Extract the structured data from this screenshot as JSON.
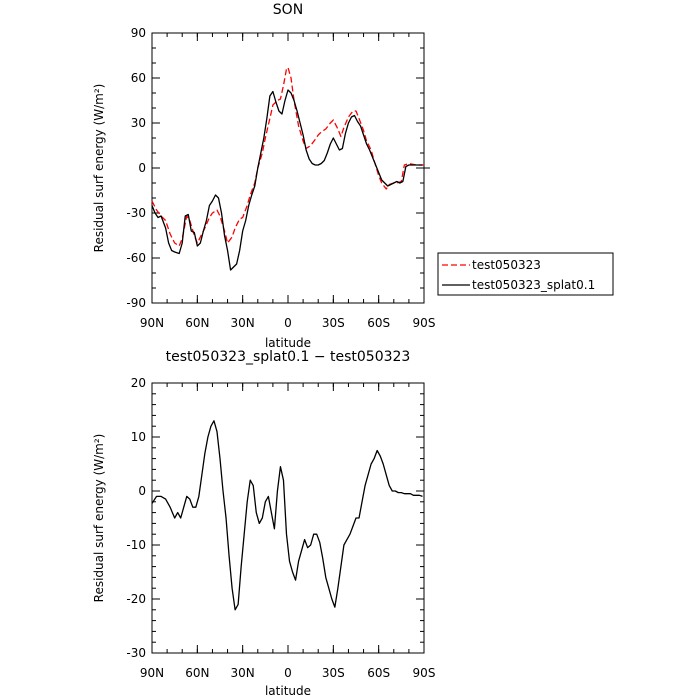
{
  "chart_data": [
    {
      "type": "line",
      "title": "SON",
      "xlabel": "latitude",
      "ylabel": "Residual surf energy (W/m²)",
      "xticks": [
        "90N",
        "60N",
        "30N",
        "0",
        "30S",
        "60S",
        "90S"
      ],
      "xtick_values": [
        90,
        60,
        30,
        0,
        -30,
        -60,
        -90
      ],
      "xlim": [
        90,
        -90
      ],
      "ylim": [
        -90,
        90
      ],
      "yticks": [
        90,
        60,
        30,
        0,
        -30,
        -60,
        -90
      ],
      "legend": "outside-right",
      "series": [
        {
          "name": "test050323",
          "color": "#ff0000",
          "dash": "dashed",
          "x": [
            90,
            87,
            84,
            81,
            78,
            75,
            72,
            70,
            67,
            65,
            62,
            60,
            57,
            55,
            52,
            50,
            47,
            45,
            42,
            40,
            37,
            35,
            32,
            30,
            27,
            25,
            22,
            20,
            17,
            15,
            12,
            10,
            7,
            5,
            3,
            1,
            0,
            -2,
            -4,
            -7,
            -10,
            -12,
            -15,
            -18,
            -20,
            -22,
            -25,
            -28,
            -30,
            -33,
            -35,
            -37,
            -40,
            -43,
            -45,
            -47,
            -50,
            -52,
            -55,
            -57,
            -60,
            -62,
            -65,
            -67,
            -70,
            -72,
            -75,
            -77,
            -80,
            -85,
            -88,
            -90
          ],
          "y": [
            -22,
            -28,
            -32,
            -35,
            -44,
            -50,
            -52,
            -47,
            -32,
            -35,
            -45,
            -50,
            -44,
            -40,
            -33,
            -30,
            -28,
            -32,
            -42,
            -50,
            -46,
            -40,
            -34,
            -33,
            -25,
            -18,
            -10,
            0,
            10,
            20,
            33,
            42,
            45,
            46,
            55,
            66,
            67,
            60,
            45,
            28,
            18,
            13,
            15,
            19,
            22,
            24,
            26,
            30,
            32,
            26,
            21,
            27,
            34,
            38,
            38,
            33,
            25,
            18,
            12,
            5,
            -5,
            -10,
            -14,
            -11,
            -10,
            -10,
            -9,
            2,
            3,
            2,
            2,
            2
          ]
        },
        {
          "name": "test050323_splat0.1",
          "color": "#000000",
          "dash": "solid",
          "x": [
            90,
            88,
            86,
            84,
            81,
            79,
            77,
            75,
            72,
            70,
            68,
            66,
            64,
            62,
            60,
            58,
            56,
            54,
            52,
            50,
            48,
            46,
            44,
            42,
            40,
            38,
            36,
            34,
            32,
            30,
            28,
            26,
            24,
            22,
            20,
            18,
            16,
            14,
            12,
            10,
            8,
            6,
            4,
            2,
            0,
            -2,
            -4,
            -6,
            -8,
            -10,
            -12,
            -14,
            -16,
            -18,
            -20,
            -22,
            -24,
            -26,
            -28,
            -30,
            -32,
            -34,
            -36,
            -38,
            -40,
            -42,
            -44,
            -46,
            -48,
            -50,
            -52,
            -54,
            -56,
            -58,
            -60,
            -62,
            -64,
            -66,
            -68,
            -70,
            -72,
            -74,
            -76,
            -78,
            -80,
            -83,
            -86,
            -89
          ],
          "y": [
            -25,
            -30,
            -33,
            -32,
            -40,
            -50,
            -55,
            -56,
            -57,
            -50,
            -32,
            -31,
            -42,
            -43,
            -52,
            -50,
            -42,
            -35,
            -25,
            -22,
            -18,
            -20,
            -30,
            -45,
            -55,
            -68,
            -66,
            -64,
            -55,
            -42,
            -35,
            -25,
            -18,
            -12,
            0,
            10,
            20,
            33,
            48,
            51,
            44,
            38,
            36,
            45,
            52,
            50,
            45,
            38,
            30,
            22,
            12,
            6,
            3,
            2,
            2,
            3,
            5,
            10,
            16,
            20,
            16,
            12,
            13,
            23,
            30,
            34,
            35,
            31,
            28,
            22,
            16,
            12,
            7,
            2,
            -3,
            -8,
            -10,
            -12,
            -11,
            -10,
            -9,
            -10,
            -9,
            1,
            2,
            2,
            2,
            2
          ]
        }
      ]
    },
    {
      "type": "line",
      "title": "test050323_splat0.1 − test050323",
      "xlabel": "latitude",
      "ylabel": "Residual surf energy (W/m²)",
      "xticks": [
        "90N",
        "60N",
        "30N",
        "0",
        "30S",
        "60S",
        "90S"
      ],
      "xtick_values": [
        90,
        60,
        30,
        0,
        -30,
        -60,
        -90
      ],
      "xlim": [
        90,
        -90
      ],
      "ylim": [
        -30,
        20
      ],
      "yticks": [
        20,
        10,
        0,
        -10,
        -20,
        -30
      ],
      "series": [
        {
          "color": "#000000",
          "dash": "solid",
          "x": [
            90,
            87,
            84,
            81,
            78,
            75,
            73,
            71,
            69,
            67,
            65,
            63,
            61,
            59,
            57,
            55,
            53,
            51,
            49,
            47,
            45,
            43,
            41,
            39,
            37,
            35,
            33,
            31,
            29,
            27,
            25,
            23,
            21,
            19,
            17,
            15,
            13,
            11,
            9,
            7,
            5,
            3,
            1,
            -1,
            -3,
            -5,
            -7,
            -9,
            -11,
            -13,
            -15,
            -17,
            -19,
            -21,
            -23,
            -25,
            -27,
            -29,
            -31,
            -33,
            -35,
            -37,
            -39,
            -41,
            -43,
            -45,
            -47,
            -49,
            -51,
            -53,
            -55,
            -57,
            -59,
            -61,
            -63,
            -65,
            -67,
            -69,
            -71,
            -73,
            -75,
            -77,
            -79,
            -81,
            -83,
            -85,
            -87,
            -89
          ],
          "y": [
            -2.3,
            -1,
            -1,
            -1.5,
            -3,
            -5,
            -4,
            -5,
            -3,
            -1,
            -1.5,
            -3,
            -3,
            -1,
            3,
            7,
            10,
            12,
            13,
            11,
            6,
            0,
            -5,
            -12,
            -18,
            -22,
            -21,
            -14,
            -8,
            -2,
            2,
            1,
            -4,
            -6,
            -5,
            -2,
            -1,
            -4,
            -7,
            0,
            4.5,
            2,
            -8,
            -13,
            -15,
            -16.5,
            -13,
            -11,
            -9,
            -10.5,
            -10,
            -8,
            -8,
            -9.5,
            -12.5,
            -16,
            -18,
            -20,
            -21.5,
            -18,
            -14,
            -10,
            -9,
            -8,
            -6.5,
            -5,
            -5,
            -2,
            1,
            3,
            5,
            6,
            7.5,
            6.5,
            5,
            3,
            1,
            0,
            0,
            -0.3,
            -0.3,
            -0.5,
            -0.5,
            -0.5,
            -0.8,
            -0.8,
            -0.8,
            -1
          ]
        }
      ]
    }
  ]
}
